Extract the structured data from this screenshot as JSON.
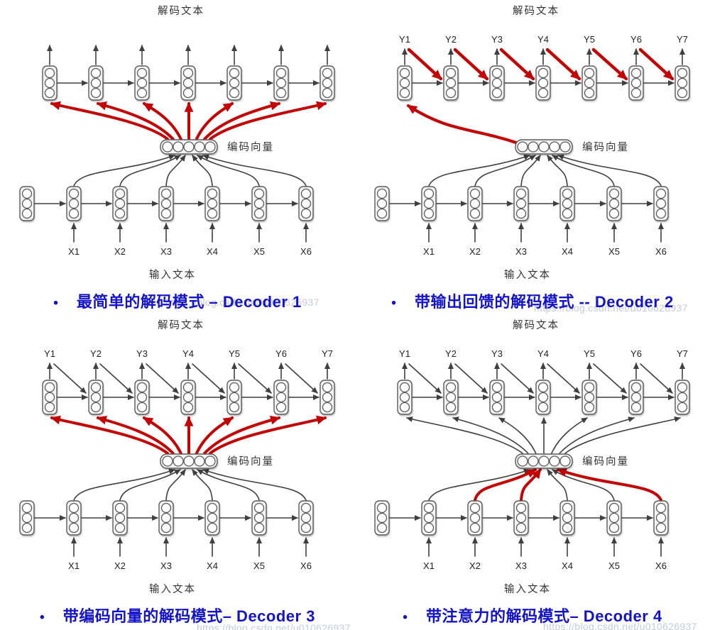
{
  "colors": {
    "red": "#c40404",
    "line": "#3f3f3f",
    "cell_fill": "#f4f4f4",
    "cell_stroke": "#5a5a5a",
    "caption_blue": "#1213cb",
    "watermark": "#c7cad6",
    "diagram_label": "#333333",
    "xy_label": "#222222"
  },
  "labels": {
    "decoded_text": "解码文本",
    "encoded_vector": "编码向量",
    "input_text": "输入文本",
    "bullet": "•"
  },
  "watermark_text": "https://blog.csdn.net/u010626937",
  "diagrams": [
    {
      "id": "decoder-1",
      "caption": "最简单的解码模式 – Decoder 1",
      "x_labels": [
        "X1",
        "X2",
        "X3",
        "X4",
        "X5",
        "X6"
      ],
      "y_labels": [],
      "feedback": "none",
      "vector_fan": "red-all",
      "encoder_red_inputs": []
    },
    {
      "id": "decoder-2",
      "caption": "带输出回馈的解码模式 -- Decoder 2",
      "x_labels": [
        "X1",
        "X2",
        "X3",
        "X4",
        "X5",
        "X6"
      ],
      "y_labels": [
        "Y1",
        "Y2",
        "Y3",
        "Y4",
        "Y5",
        "Y6",
        "Y7"
      ],
      "feedback": "red",
      "vector_fan": "red-first",
      "encoder_red_inputs": []
    },
    {
      "id": "decoder-3",
      "caption": "带编码向量的解码模式– Decoder 3",
      "x_labels": [
        "X1",
        "X2",
        "X3",
        "X4",
        "X5",
        "X6"
      ],
      "y_labels": [
        "Y1",
        "Y2",
        "Y3",
        "Y4",
        "Y5",
        "Y6",
        "Y7"
      ],
      "feedback": "black",
      "vector_fan": "red-all",
      "encoder_red_inputs": []
    },
    {
      "id": "decoder-4",
      "caption": "带注意力的解码模式– Decoder 4",
      "x_labels": [
        "X1",
        "X2",
        "X3",
        "X4",
        "X5",
        "X6"
      ],
      "y_labels": [
        "Y1",
        "Y2",
        "Y3",
        "Y4",
        "Y5",
        "Y6",
        "Y7"
      ],
      "feedback": "black",
      "vector_fan": "black-all",
      "encoder_red_inputs": [
        "X2",
        "X3",
        "X6"
      ]
    }
  ]
}
